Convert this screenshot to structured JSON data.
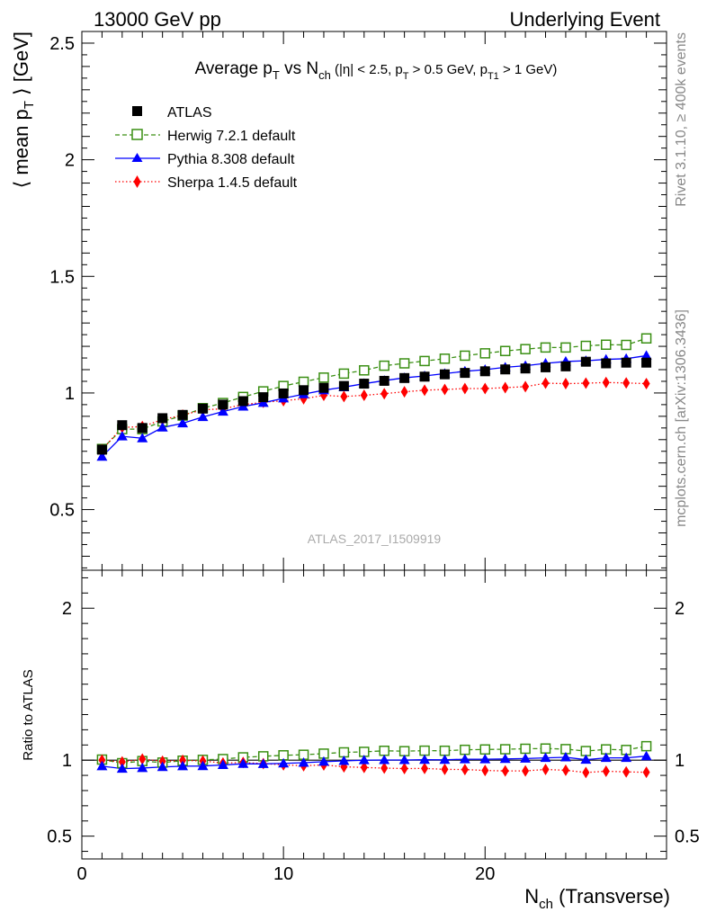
{
  "header": {
    "left": "13000 GeV pp",
    "right": "Underlying Event"
  },
  "side_labels": {
    "rivet": "Rivet 3.1.10, ≥ 400k events",
    "mcplots": "mcplots.cern.ch [arXiv:1306.3436]"
  },
  "chart_data": {
    "type": "scatter",
    "title_parts": {
      "a": "Average p",
      "a_sub": "T",
      "b": " vs N",
      "b_sub": "ch",
      "c": " (|η| < 2.5, p",
      "c_sub": "T",
      "d": " > 0.5 GeV, p",
      "d_sub": "T1",
      "e": " > 1 GeV)"
    },
    "ylabel_parts": {
      "a": "⟨ mean p",
      "a_sub": "T",
      "b": " ⟩ [GeV]"
    },
    "xlabel_parts": {
      "a": "N",
      "a_sub": "ch",
      "b": " (Transverse)"
    },
    "ratio_ylabel": "Ratio to ATLAS",
    "watermark": "ATLAS_2017_I1509919",
    "xlim": [
      0,
      29
    ],
    "ylim_main": [
      0.24,
      2.55
    ],
    "ylim_ratio": [
      0.35,
      2.25
    ],
    "x_ticks_major": [
      0,
      10,
      20
    ],
    "x_tick_labels": [
      "0",
      "10",
      "20"
    ],
    "y_ticks_main": [
      0.5,
      1,
      1.5,
      2,
      2.5
    ],
    "y_tick_labels_main": [
      "0.5",
      "1",
      "1.5",
      "2",
      "2.5"
    ],
    "y_ticks_ratio": [
      0.5,
      1,
      2
    ],
    "y_tick_labels_ratio": [
      "0.5",
      "1",
      "2"
    ],
    "legend_position": "top-left",
    "x": [
      1,
      2,
      3,
      4,
      5,
      6,
      7,
      8,
      9,
      10,
      11,
      12,
      13,
      14,
      15,
      16,
      17,
      18,
      19,
      20,
      21,
      22,
      23,
      24,
      25,
      26,
      27,
      28
    ],
    "series": [
      {
        "name": "ATLAS",
        "color": "#000000",
        "marker": "square-filled",
        "line": "none",
        "values": [
          0.757,
          0.862,
          0.85,
          0.892,
          0.906,
          0.933,
          0.95,
          0.965,
          0.982,
          0.998,
          1.012,
          1.022,
          1.03,
          1.04,
          1.052,
          1.064,
          1.07,
          1.08,
          1.086,
          1.093,
          1.101,
          1.105,
          1.11,
          1.114,
          1.134,
          1.127,
          1.13,
          1.13
        ]
      },
      {
        "name": "Herwig 7.2.1 default",
        "color": "#3a8f13",
        "marker": "square-open",
        "line": "dashed",
        "values": [
          0.76,
          0.845,
          0.845,
          0.878,
          0.903,
          0.935,
          0.957,
          0.983,
          1.007,
          1.03,
          1.048,
          1.066,
          1.083,
          1.097,
          1.117,
          1.127,
          1.137,
          1.147,
          1.16,
          1.17,
          1.18,
          1.188,
          1.195,
          1.195,
          1.202,
          1.207,
          1.206,
          1.234
        ]
      },
      {
        "name": "Pythia 8.308 default",
        "color": "#0000ff",
        "marker": "triangle-filled",
        "line": "solid",
        "values": [
          0.727,
          0.814,
          0.806,
          0.852,
          0.87,
          0.897,
          0.92,
          0.942,
          0.958,
          0.977,
          0.995,
          1.012,
          1.025,
          1.04,
          1.053,
          1.065,
          1.073,
          1.083,
          1.093,
          1.1,
          1.11,
          1.117,
          1.127,
          1.135,
          1.138,
          1.144,
          1.147,
          1.16
        ]
      },
      {
        "name": "Sherpa 1.4.5 default",
        "color": "#ff0000",
        "marker": "diamond-filled",
        "line": "dotted",
        "values": [
          0.757,
          0.852,
          0.856,
          0.886,
          0.905,
          0.928,
          0.932,
          0.95,
          0.96,
          0.967,
          0.975,
          0.99,
          0.985,
          0.99,
          0.997,
          1.005,
          1.012,
          1.015,
          1.019,
          1.019,
          1.023,
          1.027,
          1.042,
          1.04,
          1.042,
          1.045,
          1.043,
          1.04
        ]
      }
    ]
  }
}
